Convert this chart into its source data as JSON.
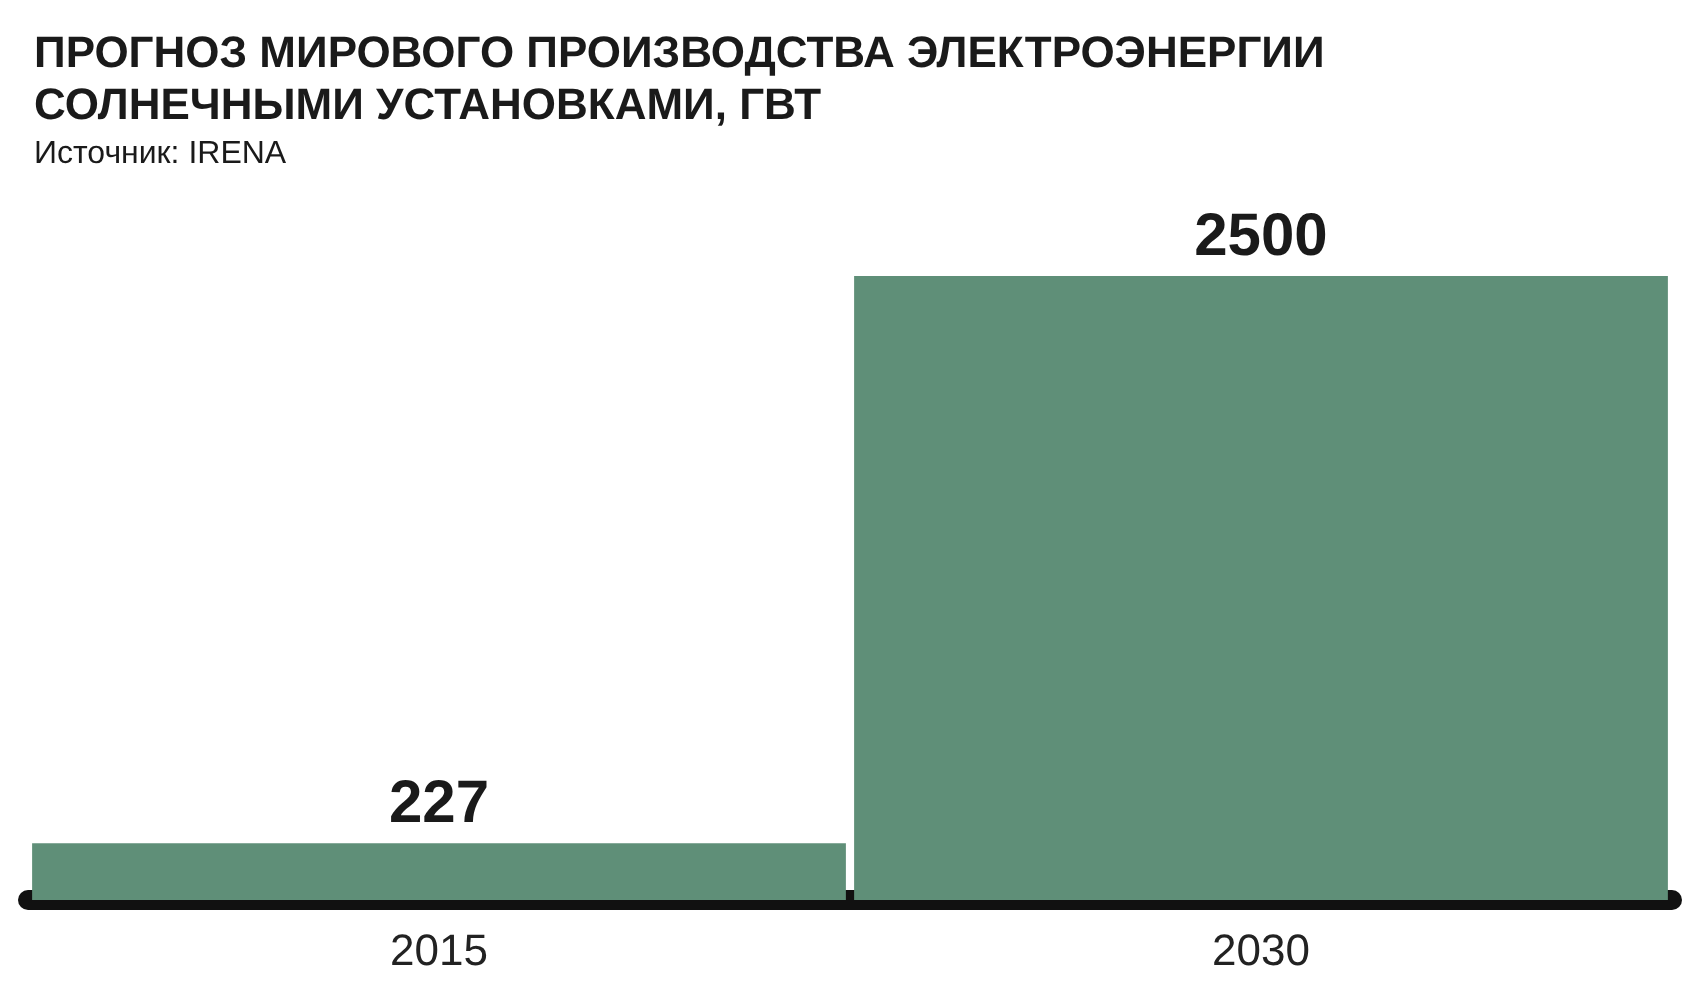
{
  "chart_data": {
    "type": "bar",
    "title": "ПРОГНОЗ МИРОВОГО ПРОИЗВОДСТВА ЭЛЕКТРОЭНЕРГИИ\nСОЛНЕЧНЫМИ УСТАНОВКАМИ, ГВТ",
    "subtitle": "Источник: IRENA",
    "categories": [
      "2015",
      "2030"
    ],
    "values": [
      227,
      2500
    ],
    "color": "#5f8f78",
    "data_labels": true
  }
}
